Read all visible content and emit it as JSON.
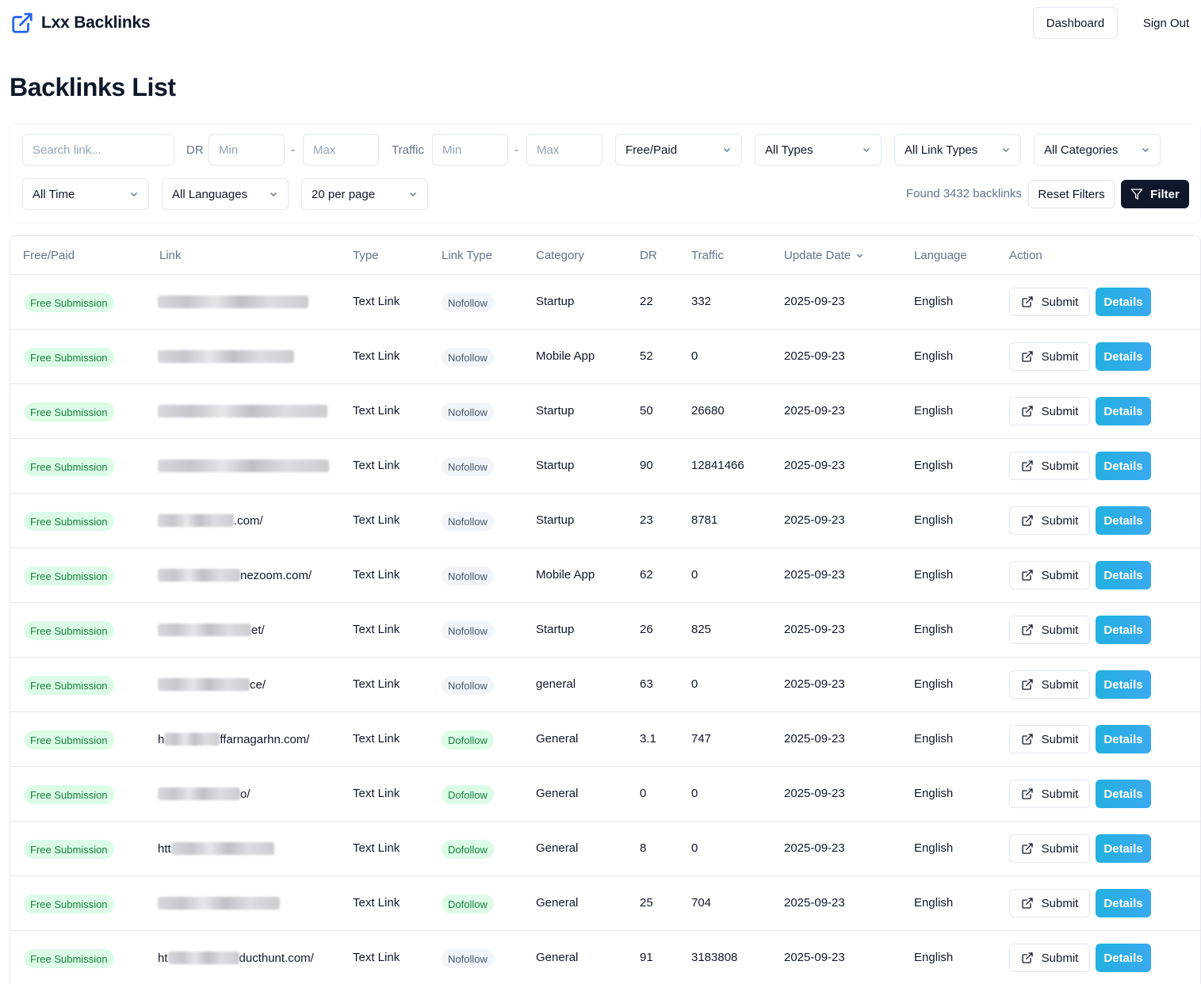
{
  "header": {
    "brand": "Lxx Backlinks",
    "dashboard_label": "Dashboard",
    "signout_label": "Sign Out"
  },
  "page_title": "Backlinks List",
  "filters": {
    "search_placeholder": "Search link...",
    "dr_label": "DR",
    "traffic_label": "Traffic",
    "min_placeholder": "Min",
    "max_placeholder": "Max",
    "range_separator": "-",
    "free_paid": "Free/Paid",
    "types": "All Types",
    "link_types": "All Link Types",
    "categories": "All Categories",
    "time": "All Time",
    "languages": "All Languages",
    "per_page": "20 per page",
    "found_text": "Found 3432 backlinks",
    "reset_label": "Reset Filters",
    "filter_label": "Filter"
  },
  "table": {
    "columns": [
      "Free/Paid",
      "Link",
      "Type",
      "Link Type",
      "Category",
      "DR",
      "Traffic",
      "Update Date",
      "Language",
      "Action"
    ],
    "submit_label": "Submit",
    "details_label": "Details",
    "rows": [
      {
        "free_paid": "Free Submission",
        "link_head": "",
        "link_tail": "",
        "type": "Text Link",
        "link_type": "Nofollow",
        "category": "Startup",
        "dr": "22",
        "traffic": "332",
        "date": "2025-09-23",
        "language": "English"
      },
      {
        "free_paid": "Free Submission",
        "link_head": "",
        "link_tail": "",
        "type": "Text Link",
        "link_type": "Nofollow",
        "category": "Mobile App",
        "dr": "52",
        "traffic": "0",
        "date": "2025-09-23",
        "language": "English"
      },
      {
        "free_paid": "Free Submission",
        "link_head": "",
        "link_tail": "",
        "type": "Text Link",
        "link_type": "Nofollow",
        "category": "Startup",
        "dr": "50",
        "traffic": "26680",
        "date": "2025-09-23",
        "language": "English"
      },
      {
        "free_paid": "Free Submission",
        "link_head": "",
        "link_tail": "",
        "type": "Text Link",
        "link_type": "Nofollow",
        "category": "Startup",
        "dr": "90",
        "traffic": "12841466",
        "date": "2025-09-23",
        "language": "English"
      },
      {
        "free_paid": "Free Submission",
        "link_head": "",
        "link_tail": ".com/",
        "type": "Text Link",
        "link_type": "Nofollow",
        "category": "Startup",
        "dr": "23",
        "traffic": "8781",
        "date": "2025-09-23",
        "language": "English"
      },
      {
        "free_paid": "Free Submission",
        "link_head": "",
        "link_tail": "nezoom.com/",
        "type": "Text Link",
        "link_type": "Nofollow",
        "category": "Mobile App",
        "dr": "62",
        "traffic": "0",
        "date": "2025-09-23",
        "language": "English"
      },
      {
        "free_paid": "Free Submission",
        "link_head": "",
        "link_tail": "et/",
        "type": "Text Link",
        "link_type": "Nofollow",
        "category": "Startup",
        "dr": "26",
        "traffic": "825",
        "date": "2025-09-23",
        "language": "English"
      },
      {
        "free_paid": "Free Submission",
        "link_head": "",
        "link_tail": "ce/",
        "type": "Text Link",
        "link_type": "Nofollow",
        "category": "general",
        "dr": "63",
        "traffic": "0",
        "date": "2025-09-23",
        "language": "English"
      },
      {
        "free_paid": "Free Submission",
        "link_head": "h",
        "link_tail": "ffarnagarhn.com/",
        "type": "Text Link",
        "link_type": "Dofollow",
        "category": "General",
        "dr": "3.1",
        "traffic": "747",
        "date": "2025-09-23",
        "language": "English"
      },
      {
        "free_paid": "Free Submission",
        "link_head": "",
        "link_tail": "o/",
        "type": "Text Link",
        "link_type": "Dofollow",
        "category": "General",
        "dr": "0",
        "traffic": "0",
        "date": "2025-09-23",
        "language": "English"
      },
      {
        "free_paid": "Free Submission",
        "link_head": "htt",
        "link_tail": "",
        "type": "Text Link",
        "link_type": "Dofollow",
        "category": "General",
        "dr": "8",
        "traffic": "0",
        "date": "2025-09-23",
        "language": "English"
      },
      {
        "free_paid": "Free Submission",
        "link_head": "",
        "link_tail": "",
        "type": "Text Link",
        "link_type": "Dofollow",
        "category": "General",
        "dr": "25",
        "traffic": "704",
        "date": "2025-09-23",
        "language": "English"
      },
      {
        "free_paid": "Free Submission",
        "link_head": "ht",
        "link_tail": "ducthunt.com/",
        "type": "Text Link",
        "link_type": "Nofollow",
        "category": "General",
        "dr": "91",
        "traffic": "3183808",
        "date": "2025-09-23",
        "language": "English"
      }
    ]
  },
  "colors": {
    "accent_dark": "#0f172a",
    "details_blue": "#22b0e0",
    "free_badge_bg": "#dcfce7",
    "free_badge_text": "#15803d",
    "brand_icon": "#2563eb"
  },
  "icons": {
    "brand": "external-link-icon",
    "filter": "funnel-icon",
    "submit": "external-link-icon",
    "select": "chevron-down-icon",
    "sort": "chevron-down-icon"
  }
}
